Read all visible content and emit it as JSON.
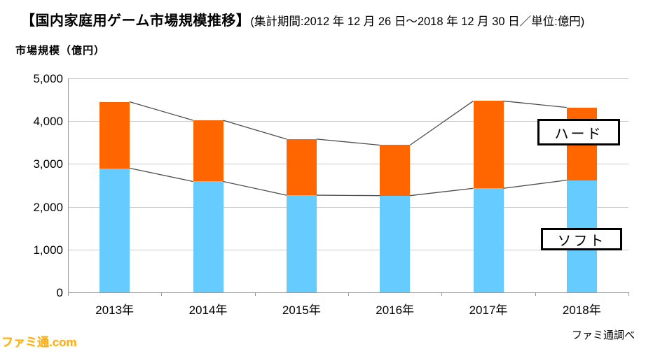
{
  "title": {
    "main": "【国内家庭用ゲーム市場規模推移】",
    "sub": "(集計期間:2012 年 12 月 26 日～2018 年 12 月 30 日／単位:億円)"
  },
  "axis_title": "市場規模（億円）",
  "legend": {
    "hard_label": "ハード",
    "soft_label": "ソフト"
  },
  "source_note": "ファミ通調べ",
  "watermark": "ファミ通.com",
  "colors": {
    "hard": "#ff6600",
    "soft": "#66ccff",
    "series_line": "#4d4d4d",
    "gridline": "#c9c9c9",
    "axis_line": "#9a9a9a"
  },
  "chart_data": {
    "type": "bar",
    "stacked": true,
    "title": "国内家庭用ゲーム市場規模推移",
    "period": "2012年12月26日～2018年12月30日",
    "unit": "億円",
    "ylabel": "市場規模（億円）",
    "categories": [
      "2013年",
      "2014年",
      "2015年",
      "2016年",
      "2017年",
      "2018年"
    ],
    "series": [
      {
        "name": "ソフト",
        "color_key": "soft",
        "values": [
          2900,
          2590,
          2270,
          2260,
          2430,
          2620
        ]
      },
      {
        "name": "ハード",
        "color_key": "hard",
        "values": [
          1550,
          1430,
          1310,
          1180,
          2040,
          1700
        ]
      }
    ],
    "totals": [
      4450,
      4020,
      3580,
      3440,
      4470,
      4320
    ],
    "ylim": [
      0,
      5000
    ],
    "ytick_interval": 1000,
    "ytick_labels": [
      "0",
      "1,000",
      "2,000",
      "3,000",
      "4,000",
      "5,000"
    ],
    "grid": true,
    "series_lines": true,
    "legend_position": "inside-right"
  }
}
